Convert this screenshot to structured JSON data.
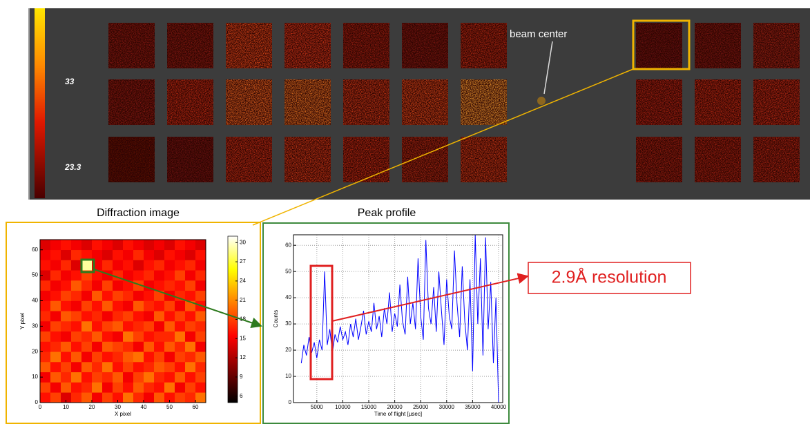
{
  "detector": {
    "colorbar_labels": [
      33,
      23.3
    ],
    "annotation": "beam center"
  },
  "chart_data": [
    {
      "type": "heatmap",
      "title": "Diffraction image",
      "xlabel": "X pixel",
      "ylabel": "Y pixel",
      "xbins": [
        0,
        4,
        8,
        12,
        16,
        20,
        24,
        28,
        32,
        36,
        40,
        44,
        48,
        52,
        56,
        60,
        64
      ],
      "ybins": [
        0,
        4,
        8,
        12,
        16,
        20,
        24,
        28,
        32,
        36,
        40,
        44,
        48,
        52,
        56,
        60,
        64
      ],
      "values": [
        [
          16,
          18,
          14,
          17,
          19,
          15,
          18,
          16,
          20,
          17,
          15,
          19,
          16,
          18,
          17,
          20
        ],
        [
          18,
          15,
          19,
          16,
          17,
          20,
          15,
          18,
          16,
          19,
          17,
          16,
          20,
          15,
          18,
          16
        ],
        [
          15,
          19,
          17,
          20,
          16,
          18,
          17,
          19,
          15,
          18,
          20,
          17,
          16,
          19,
          16,
          18
        ],
        [
          19,
          16,
          18,
          15,
          19,
          17,
          20,
          16,
          18,
          16,
          17,
          19,
          18,
          16,
          20,
          17
        ],
        [
          17,
          20,
          16,
          19,
          15,
          18,
          16,
          17,
          19,
          20,
          16,
          18,
          15,
          18,
          17,
          19
        ],
        [
          16,
          17,
          19,
          16,
          18,
          15,
          19,
          18,
          17,
          15,
          19,
          16,
          19,
          17,
          20,
          15
        ],
        [
          18,
          16,
          15,
          18,
          17,
          19,
          16,
          15,
          20,
          18,
          16,
          17,
          17,
          20,
          15,
          18
        ],
        [
          15,
          18,
          17,
          16,
          20,
          16,
          18,
          19,
          16,
          17,
          18,
          15,
          19,
          16,
          18,
          17
        ],
        [
          17,
          15,
          19,
          18,
          16,
          17,
          15,
          17,
          18,
          16,
          15,
          19,
          16,
          18,
          16,
          19
        ],
        [
          16,
          19,
          16,
          15,
          18,
          16,
          19,
          16,
          15,
          19,
          17,
          16,
          18,
          15,
          19,
          16
        ],
        [
          15,
          16,
          18,
          17,
          15,
          19,
          16,
          18,
          17,
          15,
          16,
          18,
          15,
          17,
          16,
          18
        ],
        [
          17,
          15,
          16,
          19,
          17,
          15,
          18,
          15,
          16,
          18,
          15,
          16,
          17,
          16,
          18,
          15
        ],
        [
          14,
          17,
          15,
          16,
          18,
          16,
          15,
          17,
          15,
          16,
          17,
          15,
          16,
          18,
          15,
          17
        ],
        [
          16,
          15,
          17,
          14,
          29,
          15,
          17,
          15,
          16,
          14,
          16,
          17,
          15,
          16,
          17,
          15
        ],
        [
          15,
          16,
          14,
          17,
          16,
          15,
          14,
          16,
          15,
          17,
          15,
          14,
          16,
          15,
          14,
          16
        ],
        [
          14,
          15,
          16,
          15,
          14,
          16,
          15,
          14,
          16,
          15,
          14,
          15,
          14,
          16,
          15,
          14
        ]
      ],
      "xlim": [
        0,
        64
      ],
      "ylim": [
        0,
        64
      ],
      "xticks": [
        0,
        10,
        20,
        30,
        40,
        50,
        60
      ],
      "yticks": [
        0,
        10,
        20,
        30,
        40,
        50,
        60
      ],
      "colormap": "hot",
      "clim": [
        5,
        31
      ],
      "cticks": [
        6,
        9,
        12,
        15,
        18,
        21,
        24,
        27,
        30
      ]
    },
    {
      "type": "line",
      "title": "Peak profile",
      "xlabel": "Time of flight [µsec]",
      "ylabel": "Counts",
      "color": "#0000ff",
      "x": [
        2000,
        2500,
        3000,
        3500,
        4000,
        4500,
        5000,
        5500,
        6000,
        6500,
        7000,
        7500,
        8000,
        8500,
        9000,
        9500,
        10000,
        10500,
        11000,
        11500,
        12000,
        12500,
        13000,
        13500,
        14000,
        14500,
        15000,
        15500,
        16000,
        16500,
        17000,
        17500,
        18000,
        18500,
        19000,
        19500,
        20000,
        20500,
        21000,
        21500,
        22000,
        22500,
        23000,
        23500,
        24000,
        24500,
        25000,
        25500,
        26000,
        26500,
        27000,
        27500,
        28000,
        28500,
        29000,
        29500,
        30000,
        30500,
        31000,
        31500,
        32000,
        32500,
        33000,
        33500,
        34000,
        34500,
        35000,
        35500,
        36000,
        36500,
        37000,
        37500,
        38000,
        38500,
        39000,
        39500,
        40000
      ],
      "values": [
        15,
        22,
        18,
        25,
        19,
        23,
        17,
        24,
        20,
        50,
        22,
        28,
        19,
        26,
        23,
        29,
        24,
        27,
        22,
        30,
        25,
        32,
        24,
        29,
        35,
        26,
        31,
        27,
        38,
        28,
        33,
        25,
        36,
        30,
        42,
        27,
        34,
        29,
        45,
        31,
        26,
        48,
        30,
        38,
        28,
        55,
        33,
        24,
        62,
        36,
        30,
        44,
        27,
        50,
        35,
        22,
        47,
        33,
        28,
        58,
        38,
        25,
        52,
        31,
        20,
        47,
        12,
        64,
        30,
        55,
        18,
        63,
        28,
        46,
        15,
        40,
        0
      ],
      "xlim": [
        500,
        40800
      ],
      "ylim": [
        0,
        64
      ],
      "xticks": [
        5000,
        10000,
        15000,
        20000,
        25000,
        30000,
        35000,
        40000
      ],
      "yticks": [
        0,
        10,
        20,
        30,
        40,
        50,
        60
      ],
      "grid": true
    }
  ],
  "annotation": "2.9Å resolution"
}
